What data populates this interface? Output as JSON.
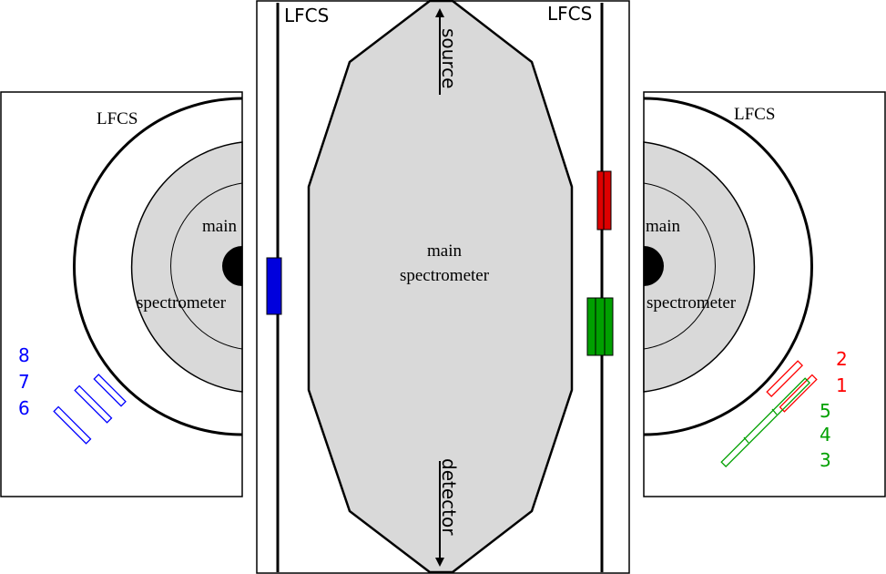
{
  "diagram": {
    "center_panel": {
      "lfcs_left": "LFCS",
      "lfcs_right": "LFCS",
      "main_line1": "main",
      "main_line2": "spectrometer",
      "source": "source",
      "detector": "detector"
    },
    "left_panel": {
      "lfcs": "LFCS",
      "main": "main",
      "spectrometer": "spectrometer",
      "numbers": [
        "8",
        "7",
        "6"
      ]
    },
    "right_panel": {
      "lfcs": "LFCS",
      "main": "main",
      "spectrometer": "spectrometer",
      "numbers_red": [
        "2",
        "1"
      ],
      "numbers_green": [
        "5",
        "4",
        "3"
      ]
    }
  },
  "colors": {
    "spectrometer_fill": "#d9d9d9",
    "blue": "#0000ff",
    "red": "#ff0000",
    "green": "#00a000",
    "module_red": "#dd0000",
    "module_green": "#00a000",
    "module_blue": "#0000dd"
  }
}
